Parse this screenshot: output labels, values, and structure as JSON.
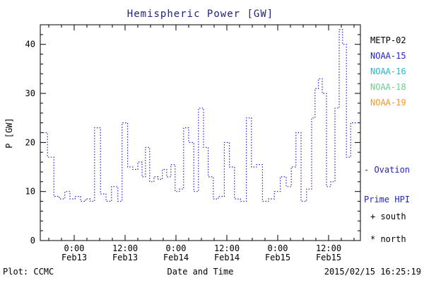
{
  "title": "Hemispheric Power [GW]",
  "title_color": "#23237a",
  "axes": {
    "ylabel": "P [GW]",
    "xlabel": "Date and Time"
  },
  "footer": {
    "left": "Plot: CCMC",
    "right": "2015/02/15 16:25:19"
  },
  "legend": {
    "items": [
      {
        "label": "METP-02",
        "color": "#000000"
      },
      {
        "label": "NOAA-15",
        "color": "#2323c8"
      },
      {
        "label": "NOAA-16",
        "color": "#23b8c8"
      },
      {
        "label": "NOAA-18",
        "color": "#6ecc8a"
      },
      {
        "label": "NOAA-19",
        "color": "#ef9a23"
      }
    ],
    "note_line1": "- Ovation",
    "note_line2": "Prime HPI",
    "note_color": "#2323c8",
    "south": "+ south",
    "north": "* north"
  },
  "chart_data": {
    "type": "line",
    "style": "dotted-step",
    "color": "#2323c8",
    "title": "Hemispheric Power [GW]",
    "xlabel": "Date and Time",
    "ylabel": "P [GW]",
    "ylim": [
      0,
      44
    ],
    "yticks": [
      0,
      10,
      20,
      30,
      40
    ],
    "x_unit": "hours along axis",
    "xlim": [
      0,
      75.5
    ],
    "xticks": [
      {
        "x": 8,
        "time": "0:00",
        "date": "Feb13"
      },
      {
        "x": 20,
        "time": "12:00",
        "date": "Feb13"
      },
      {
        "x": 32,
        "time": "0:00",
        "date": "Feb14"
      },
      {
        "x": 44,
        "time": "12:00",
        "date": "Feb14"
      },
      {
        "x": 56,
        "time": "0:00",
        "date": "Feb15"
      },
      {
        "x": 68,
        "time": "12:00",
        "date": "Feb15"
      }
    ],
    "series": [
      {
        "name": "Ovation Prime HPI",
        "end_x": 74.5,
        "points": [
          [
            0.0,
            22
          ],
          [
            1.7,
            17
          ],
          [
            3.2,
            9
          ],
          [
            4.5,
            8.5
          ],
          [
            5.8,
            10
          ],
          [
            7.0,
            8.5
          ],
          [
            8.2,
            9
          ],
          [
            9.5,
            8
          ],
          [
            10.7,
            8.5
          ],
          [
            11.8,
            8
          ],
          [
            12.8,
            23
          ],
          [
            14.2,
            9.5
          ],
          [
            15.5,
            8
          ],
          [
            16.8,
            11
          ],
          [
            18.3,
            8
          ],
          [
            19.3,
            24
          ],
          [
            20.6,
            15
          ],
          [
            21.8,
            14.5
          ],
          [
            23.0,
            16
          ],
          [
            24.0,
            13
          ],
          [
            24.8,
            19
          ],
          [
            25.8,
            12
          ],
          [
            26.8,
            13
          ],
          [
            27.8,
            12.5
          ],
          [
            28.8,
            14.5
          ],
          [
            29.8,
            13
          ],
          [
            30.8,
            15.5
          ],
          [
            31.8,
            10
          ],
          [
            32.8,
            10.5
          ],
          [
            33.8,
            23
          ],
          [
            35.0,
            20
          ],
          [
            36.2,
            10
          ],
          [
            37.3,
            27
          ],
          [
            38.5,
            19
          ],
          [
            39.6,
            13
          ],
          [
            40.8,
            8.5
          ],
          [
            42.0,
            9
          ],
          [
            43.4,
            20
          ],
          [
            44.6,
            15
          ],
          [
            45.8,
            8.5
          ],
          [
            47.2,
            8
          ],
          [
            48.6,
            25
          ],
          [
            49.8,
            15
          ],
          [
            51.0,
            15.5
          ],
          [
            52.4,
            8
          ],
          [
            53.8,
            8.5
          ],
          [
            55.2,
            10
          ],
          [
            56.6,
            13
          ],
          [
            58.0,
            11
          ],
          [
            59.2,
            15
          ],
          [
            60.3,
            22
          ],
          [
            61.5,
            8
          ],
          [
            62.8,
            10.5
          ],
          [
            64.0,
            25
          ],
          [
            64.8,
            31
          ],
          [
            65.6,
            33
          ],
          [
            66.5,
            30
          ],
          [
            67.5,
            11
          ],
          [
            68.5,
            12
          ],
          [
            69.5,
            27
          ],
          [
            70.5,
            43
          ],
          [
            71.3,
            40
          ],
          [
            72.2,
            17
          ],
          [
            73.2,
            24
          ]
        ]
      }
    ]
  }
}
